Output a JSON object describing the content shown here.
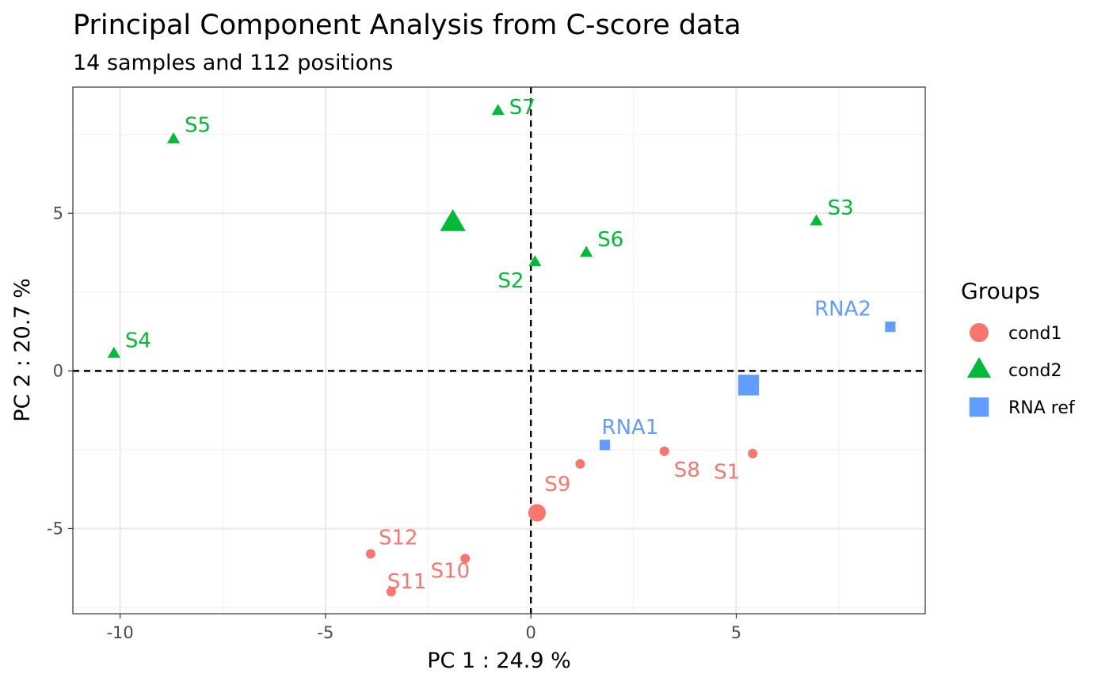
{
  "chart_data": {
    "type": "scatter",
    "title": "Principal Component Analysis from C-score data",
    "subtitle": "14 samples and 112 positions",
    "xlabel": "PC 1 : 24.9 %",
    "ylabel": "PC 2 : 20.7 %",
    "xlim": [
      -11.15,
      9.6
    ],
    "ylim": [
      -7.7,
      9.0
    ],
    "x_ticks": [
      -10,
      -5,
      0,
      5
    ],
    "y_ticks": [
      -5,
      0,
      5
    ],
    "grid": true,
    "reference_lines": {
      "x": 0,
      "y": 0,
      "style": "dashed"
    },
    "legend": {
      "title": "Groups",
      "position": "right",
      "entries": [
        {
          "label": "cond1",
          "shape": "circle",
          "color": "#F8766D"
        },
        {
          "label": "cond2",
          "shape": "triangle",
          "color": "#00BA38"
        },
        {
          "label": "RNA ref",
          "shape": "square",
          "color": "#619CFF"
        }
      ]
    },
    "series": [
      {
        "name": "cond1",
        "shape": "circle",
        "color": "#F8766D",
        "points": [
          {
            "label": "S1",
            "x": 5.4,
            "y": -2.62,
            "lx": -16,
            "ly": 32,
            "anchor": "end"
          },
          {
            "label": "S8",
            "x": 3.25,
            "y": -2.55,
            "lx": 12,
            "ly": 32,
            "anchor": "start"
          },
          {
            "label": "S9",
            "x": 1.2,
            "y": -2.95,
            "lx": -12,
            "ly": 34,
            "anchor": "end"
          },
          {
            "label": "S10",
            "x": -1.6,
            "y": -5.95,
            "lx": 6,
            "ly": 24,
            "anchor": "end"
          },
          {
            "label": "S11",
            "x": -3.4,
            "y": -7.0,
            "lx": -5,
            "ly": -4,
            "anchor": "start"
          },
          {
            "label": "S12",
            "x": -3.9,
            "y": -5.8,
            "lx": 10,
            "ly": -12,
            "anchor": "start"
          }
        ],
        "centroid": {
          "x": 0.15,
          "y": -4.5
        }
      },
      {
        "name": "cond2",
        "shape": "triangle",
        "color": "#00BA38",
        "points": [
          {
            "label": "S2",
            "x": 0.1,
            "y": 3.45,
            "lx": -14,
            "ly": 32,
            "anchor": "end"
          },
          {
            "label": "S3",
            "x": 6.95,
            "y": 4.75,
            "lx": 14,
            "ly": -8,
            "anchor": "start"
          },
          {
            "label": "S4",
            "x": -10.15,
            "y": 0.55,
            "lx": 14,
            "ly": -8,
            "anchor": "start"
          },
          {
            "label": "S5",
            "x": -8.7,
            "y": 7.35,
            "lx": 14,
            "ly": -9,
            "anchor": "start"
          },
          {
            "label": "S6",
            "x": 1.35,
            "y": 3.75,
            "lx": 14,
            "ly": -8,
            "anchor": "start"
          },
          {
            "label": "S7",
            "x": -0.8,
            "y": 8.25,
            "lx": 14,
            "ly": 4,
            "anchor": "start"
          }
        ],
        "centroid": {
          "x": -1.9,
          "y": 4.7
        }
      },
      {
        "name": "RNA ref",
        "shape": "square",
        "color": "#619CFF",
        "points": [
          {
            "label": "RNA1",
            "x": 1.8,
            "y": -2.35,
            "lx": -4,
            "ly": -14,
            "anchor": "start"
          },
          {
            "label": "RNA2",
            "x": 8.75,
            "y": 1.4,
            "lx": -24,
            "ly": -14,
            "anchor": "end"
          }
        ],
        "centroid": {
          "x": 5.3,
          "y": -0.45
        }
      }
    ]
  }
}
